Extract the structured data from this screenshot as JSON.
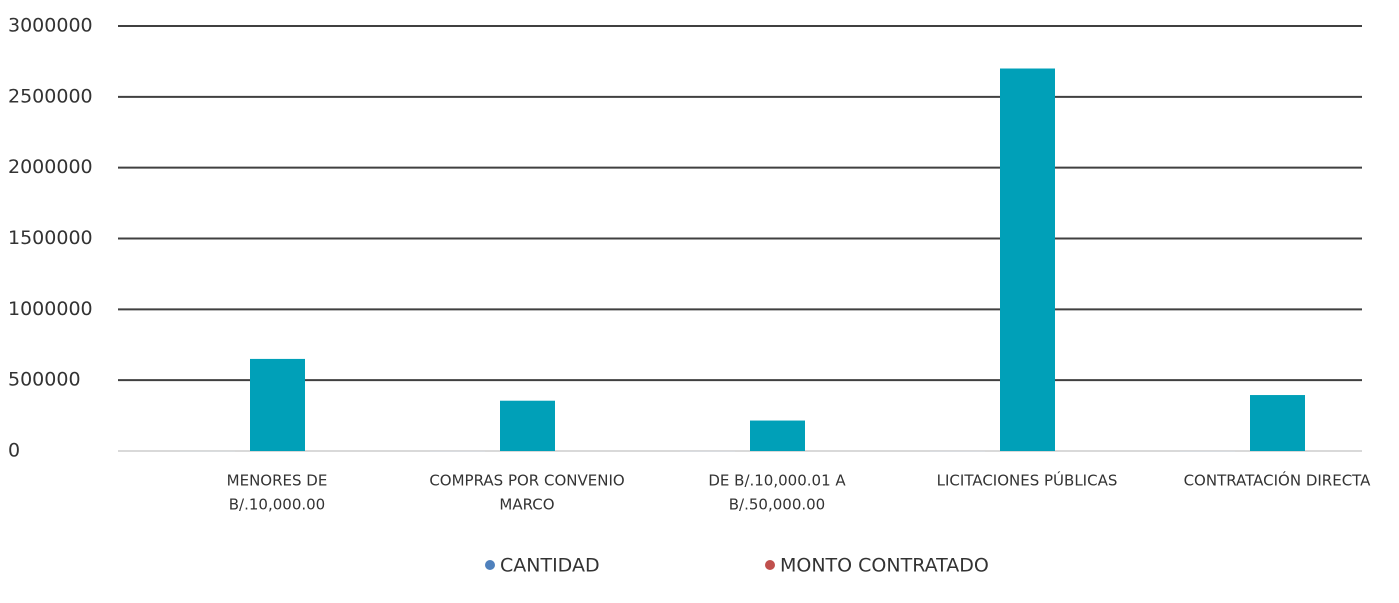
{
  "chart_data": {
    "type": "bar",
    "categories": [
      [
        "MENORES DE",
        "B/.10,000.00"
      ],
      [
        "COMPRAS POR CONVENIO",
        "MARCO"
      ],
      [
        "DE B/.10,000.01 A",
        "B/.50,000.00"
      ],
      [
        "LICITACIONES PÚBLICAS"
      ],
      [
        "CONTRATACIÓN DIRECTA"
      ]
    ],
    "series": [
      {
        "name": "CANTIDAD",
        "color": "#d9dde0",
        "legend_color": "#4f81bd",
        "values": [
          1500,
          800,
          300,
          600,
          200
        ]
      },
      {
        "name": "MONTO CONTRATADO",
        "color": "#00a0b8",
        "legend_color": "#c0504d",
        "values": [
          650000,
          355000,
          215000,
          2700000,
          395000
        ]
      }
    ],
    "ylim": [
      0,
      3000000
    ],
    "yticks": [
      0,
      500000,
      1000000,
      1500000,
      2000000,
      2500000,
      3000000
    ],
    "grid": true
  }
}
